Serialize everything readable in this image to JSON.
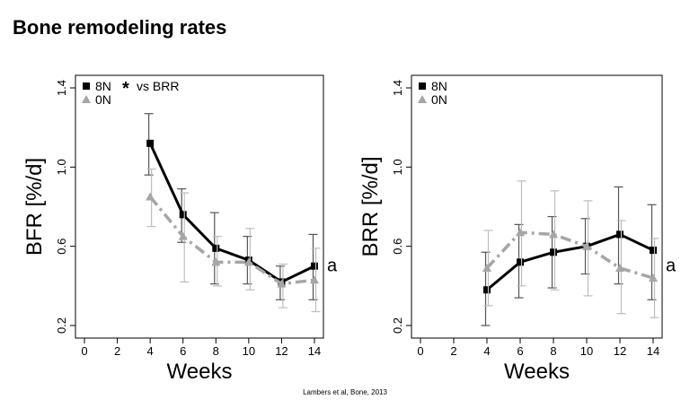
{
  "title": "Bone remodeling rates",
  "citation": "Lambers et al, Bone, 2013",
  "chart_data": [
    {
      "type": "line",
      "ylabel": "BFR [%/d]",
      "xlabel": "Weeks",
      "xlim": [
        0,
        14
      ],
      "ylim": [
        0.2,
        1.4
      ],
      "xticks": [
        "0",
        "2",
        "4",
        "6",
        "8",
        "10",
        "12",
        "14"
      ],
      "yticks": [
        "0.2",
        "0.6",
        "1.0",
        "1.4"
      ],
      "legend_position": "top-left",
      "legend_note": "vs BRR",
      "grid": false,
      "annotation": "a",
      "series": [
        {
          "name": "8N",
          "color": "#000000",
          "line_style": "solid",
          "marker": "square",
          "x": [
            4,
            6,
            8,
            10,
            12,
            14
          ],
          "y": [
            1.12,
            0.76,
            0.59,
            0.53,
            0.42,
            0.5
          ],
          "err_low": [
            0.96,
            0.62,
            0.41,
            0.41,
            0.33,
            0.33
          ],
          "err_high": [
            1.27,
            0.89,
            0.77,
            0.65,
            0.5,
            0.66
          ]
        },
        {
          "name": "0N",
          "color": "#a6a6a6",
          "line_style": "dashdot",
          "marker": "triangle",
          "x": [
            4,
            6,
            8,
            10,
            12,
            14
          ],
          "y": [
            0.85,
            0.65,
            0.52,
            0.52,
            0.41,
            0.43
          ],
          "err_low": [
            0.7,
            0.42,
            0.4,
            0.38,
            0.29,
            0.27
          ],
          "err_high": [
            0.99,
            0.87,
            0.65,
            0.69,
            0.51,
            0.59
          ]
        }
      ]
    },
    {
      "type": "line",
      "ylabel": "BRR [%/d]",
      "xlabel": "Weeks",
      "xlim": [
        0,
        14
      ],
      "ylim": [
        0.2,
        1.4
      ],
      "xticks": [
        "0",
        "2",
        "4",
        "6",
        "8",
        "10",
        "12",
        "14"
      ],
      "yticks": [
        "0.2",
        "0.6",
        "1.0",
        "1.4"
      ],
      "legend_position": "top-left",
      "grid": false,
      "annotation": "a",
      "series": [
        {
          "name": "8N",
          "color": "#000000",
          "line_style": "solid",
          "marker": "square",
          "x": [
            4,
            6,
            8,
            10,
            12,
            14
          ],
          "y": [
            0.38,
            0.52,
            0.57,
            0.6,
            0.66,
            0.58
          ],
          "err_low": [
            0.2,
            0.34,
            0.39,
            0.46,
            0.41,
            0.33
          ],
          "err_high": [
            0.57,
            0.71,
            0.75,
            0.74,
            0.9,
            0.81
          ]
        },
        {
          "name": "0N",
          "color": "#a6a6a6",
          "line_style": "dashdot",
          "marker": "triangle",
          "x": [
            4,
            6,
            8,
            10,
            12,
            14
          ],
          "y": [
            0.49,
            0.67,
            0.66,
            0.6,
            0.49,
            0.44
          ],
          "err_low": [
            0.3,
            0.4,
            0.38,
            0.35,
            0.26,
            0.24
          ],
          "err_high": [
            0.68,
            0.93,
            0.88,
            0.83,
            0.73,
            0.64
          ]
        }
      ]
    }
  ]
}
